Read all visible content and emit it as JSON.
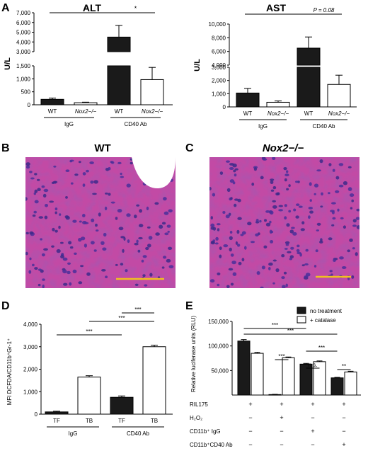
{
  "panels": {
    "A": "A",
    "B": "B",
    "C": "C",
    "D": "D",
    "E": "E"
  },
  "micrographs": {
    "B": {
      "title": "WT",
      "tissue_color": "#c24aa5",
      "scale_bar_color": "#f0c020"
    },
    "C": {
      "title": "Nox2−/−",
      "tissue_color": "#c24aa5",
      "scale_bar_color": "#f0c020"
    }
  },
  "colors": {
    "filled": "#1a1a1a",
    "open": "#ffffff",
    "stroke": "#000000"
  },
  "chart_data": [
    {
      "id": "ALT",
      "type": "bar",
      "title": "ALT",
      "ylabel": "U/L",
      "broken_axis": true,
      "upper_ticks": [
        "3,000",
        "4,000",
        "5,000",
        "6,000",
        "7,000"
      ],
      "lower_ticks": [
        "0",
        "500",
        "1,000",
        "1,500"
      ],
      "categories": [
        "WT",
        "Nox2−/−",
        "WT",
        "Nox2−/−"
      ],
      "groups": [
        "IgG",
        "CD40 Ab"
      ],
      "fill": [
        "filled",
        "open",
        "filled",
        "open"
      ],
      "values": [
        210,
        80,
        4500,
        970
      ],
      "errors": [
        50,
        20,
        1200,
        470
      ],
      "ylim": [
        0,
        7000
      ],
      "significance": [
        {
          "from": 0,
          "to": 2,
          "label": "*"
        },
        {
          "from": 2,
          "to": 3,
          "label": "*"
        }
      ]
    },
    {
      "id": "AST",
      "type": "bar",
      "title": "AST",
      "ylabel": "U/L",
      "broken_axis": true,
      "upper_ticks": [
        "4,000",
        "6,000",
        "8,000",
        "10,000"
      ],
      "lower_ticks": [
        "0",
        "1,000",
        "2,000",
        "3,000"
      ],
      "categories": [
        "WT",
        "Nox2−/−",
        "WT",
        "Nox2−/−"
      ],
      "groups": [
        "IgG",
        "CD40 Ab"
      ],
      "fill": [
        "filled",
        "open",
        "filled",
        "open"
      ],
      "values": [
        1050,
        350,
        5900,
        1700
      ],
      "errors": [
        350,
        100,
        1900,
        700
      ],
      "ylim": [
        0,
        10000
      ],
      "significance": [
        {
          "from": 0,
          "to": 2,
          "label": "*"
        },
        {
          "from": 2,
          "to": 3,
          "label": "P = 0.08"
        }
      ]
    },
    {
      "id": "D",
      "type": "bar",
      "ylabel": "MFI DCFDA/CD11b⁺Gr-1⁺",
      "yticks": [
        "0",
        "1,000",
        "2,000",
        "3,000",
        "4,000"
      ],
      "ylim": [
        0,
        4000
      ],
      "categories": [
        "TF",
        "TB",
        "TF",
        "TB"
      ],
      "groups": [
        "IgG",
        "CD40 Ab"
      ],
      "fill": [
        "filled",
        "open",
        "filled",
        "open"
      ],
      "values": [
        100,
        1650,
        750,
        3000
      ],
      "errors": [
        30,
        60,
        60,
        70
      ],
      "significance": [
        {
          "from": 0,
          "to": 2,
          "label": "***"
        },
        {
          "from": 1,
          "to": 3,
          "label": "***"
        },
        {
          "from": 2,
          "to": 3,
          "label": "***"
        }
      ]
    },
    {
      "id": "E",
      "type": "bar",
      "ylabel": "Relative luciferase units (RLU)",
      "yticks": [
        "50,000",
        "100,000",
        "150,000"
      ],
      "ylim": [
        0,
        150000
      ],
      "legend": [
        {
          "label": "no treatment",
          "fill": "filled"
        },
        {
          "label": "+ catalase",
          "fill": "open"
        }
      ],
      "conditions": [
        "RIL175",
        "H₂O₂",
        "CD11b⁺ IgG",
        "CD11b⁺CD40 Ab"
      ],
      "condition_marks": [
        [
          "+",
          "+",
          "+",
          "+"
        ],
        [
          "−",
          "+",
          "−",
          "−"
        ],
        [
          "−",
          "−",
          "+",
          "−"
        ],
        [
          "−",
          "−",
          "−",
          "+"
        ]
      ],
      "series": [
        {
          "name": "no treatment",
          "values": [
            110000,
            1000,
            63000,
            35000
          ],
          "errors": [
            3000,
            500,
            1500,
            1000
          ]
        },
        {
          "name": "+ catalase",
          "values": [
            85000,
            76000,
            68000,
            47000
          ],
          "errors": [
            2000,
            1500,
            1500,
            1500
          ]
        }
      ],
      "significance": [
        {
          "from": [
            0,
            0
          ],
          "to": [
            2,
            0
          ],
          "label": "***"
        },
        {
          "from": [
            0,
            0
          ],
          "to": [
            3,
            0
          ],
          "label": "***"
        },
        {
          "from": [
            1,
            0
          ],
          "to": [
            1,
            1
          ],
          "label": "***"
        },
        {
          "from": [
            2,
            0
          ],
          "to": [
            2,
            1
          ],
          "label": "n.s."
        },
        {
          "from": [
            2,
            0
          ],
          "to": [
            3,
            0
          ],
          "label": "***"
        },
        {
          "from": [
            3,
            0
          ],
          "to": [
            3,
            1
          ],
          "label": "**"
        }
      ]
    }
  ]
}
